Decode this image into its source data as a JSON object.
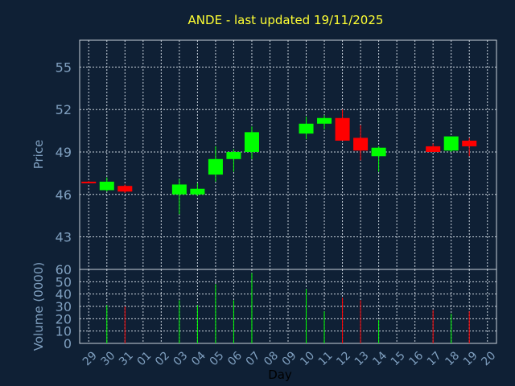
{
  "chart_data": {
    "type": "candlestick",
    "title": "ANDE - last updated 19/11/2025",
    "xlabel": "Day",
    "price_panel": {
      "ylabel": "Price",
      "ylim": [
        40.7,
        56.9
      ],
      "yticks": [
        43,
        46,
        49,
        52,
        55
      ]
    },
    "volume_panel": {
      "ylabel": "Volume (0000)",
      "ylim": [
        0,
        60
      ],
      "yticks": [
        0,
        10,
        20,
        30,
        40,
        50,
        60
      ]
    },
    "x_tick_labels": [
      "29",
      "30",
      "31",
      "01",
      "02",
      "03",
      "04",
      "05",
      "06",
      "07",
      "08",
      "09",
      "10",
      "11",
      "12",
      "13",
      "14",
      "15",
      "16",
      "17",
      "18",
      "19",
      "20"
    ],
    "colors": {
      "up": "#00ff00",
      "down": "#ff0000",
      "background": "#0f2035",
      "title": "#ffff33",
      "axis_text": "#7f9fbf"
    },
    "candles": [
      {
        "day": "29",
        "open": 46.9,
        "high": 46.95,
        "low": 46.85,
        "close": 46.9,
        "direction": "down",
        "volume": 0
      },
      {
        "day": "30",
        "open": 46.3,
        "high": 47.2,
        "low": 46.2,
        "close": 46.9,
        "direction": "up",
        "volume": 31
      },
      {
        "day": "31",
        "open": 46.6,
        "high": 46.7,
        "low": 46.1,
        "close": 46.2,
        "direction": "down",
        "volume": 30
      },
      {
        "day": "03",
        "open": 46.0,
        "high": 47.1,
        "low": 44.6,
        "close": 46.7,
        "direction": "up",
        "volume": 35
      },
      {
        "day": "04",
        "open": 46.0,
        "high": 46.8,
        "low": 45.9,
        "close": 46.4,
        "direction": "up",
        "volume": 31
      },
      {
        "day": "05",
        "open": 47.4,
        "high": 49.4,
        "low": 46.9,
        "close": 48.5,
        "direction": "up",
        "volume": 48
      },
      {
        "day": "06",
        "open": 48.5,
        "high": 49.2,
        "low": 47.6,
        "close": 49.0,
        "direction": "up",
        "volume": 35
      },
      {
        "day": "07",
        "open": 49.0,
        "high": 50.8,
        "low": 48.5,
        "close": 50.4,
        "direction": "up",
        "volume": 57
      },
      {
        "day": "10",
        "open": 50.3,
        "high": 51.5,
        "low": 49.9,
        "close": 51.0,
        "direction": "up",
        "volume": 44
      },
      {
        "day": "11",
        "open": 51.0,
        "high": 51.6,
        "low": 50.6,
        "close": 51.4,
        "direction": "up",
        "volume": 26
      },
      {
        "day": "12",
        "open": 51.4,
        "high": 52.0,
        "low": 49.8,
        "close": 49.8,
        "direction": "down",
        "volume": 37
      },
      {
        "day": "13",
        "open": 50.0,
        "high": 50.9,
        "low": 48.4,
        "close": 49.1,
        "direction": "down",
        "volume": 35
      },
      {
        "day": "14",
        "open": 48.7,
        "high": 49.4,
        "low": 47.6,
        "close": 49.3,
        "direction": "up",
        "volume": 19
      },
      {
        "day": "17",
        "open": 49.4,
        "high": 49.6,
        "low": 49.0,
        "close": 49.0,
        "direction": "down",
        "volume": 27
      },
      {
        "day": "18",
        "open": 49.1,
        "high": 50.1,
        "low": 49.0,
        "close": 50.1,
        "direction": "up",
        "volume": 24
      },
      {
        "day": "19",
        "open": 49.8,
        "high": 50.0,
        "low": 48.7,
        "close": 49.4,
        "direction": "down",
        "volume": 26
      }
    ]
  }
}
